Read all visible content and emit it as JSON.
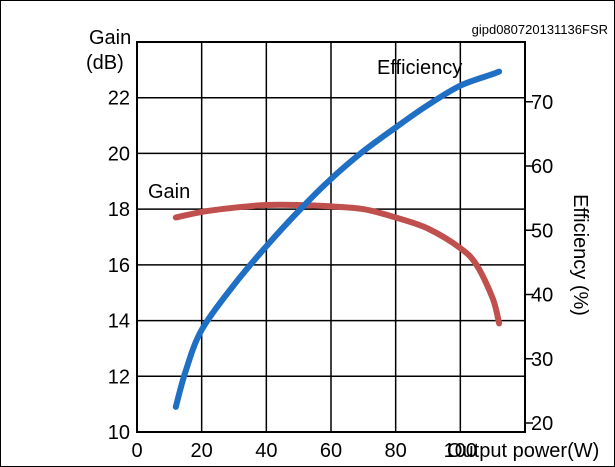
{
  "figure_id": "gipd080720131136FSR",
  "colors": {
    "gain": "#c0504d",
    "efficiency": "#1f6fc5",
    "grid": "#000000",
    "frame": "#000000"
  },
  "chart_data": {
    "type": "line",
    "title": "",
    "xlabel": "Output power(W)",
    "ylabel": "Gain",
    "ylabel_unit": "(dB)",
    "y2label": "Efficiency (%)",
    "xlim": [
      0,
      120
    ],
    "ylim": [
      10,
      24
    ],
    "y2lim": [
      18.6,
      79.3
    ],
    "grid": true,
    "x_ticks": [
      0,
      20,
      40,
      60,
      80,
      100
    ],
    "y_ticks": [
      10,
      12,
      14,
      16,
      18,
      20,
      22
    ],
    "y2_ticks": [
      20,
      30,
      40,
      50,
      60,
      70
    ],
    "series": [
      {
        "name": "Gain",
        "axis": "left",
        "color": "#c0504d",
        "x": [
          12,
          20,
          30,
          40,
          50,
          60,
          70,
          80,
          90,
          100,
          105,
          110,
          112
        ],
        "y": [
          17.7,
          17.9,
          18.05,
          18.15,
          18.15,
          18.1,
          18.0,
          17.7,
          17.3,
          16.6,
          16.0,
          14.8,
          13.9
        ]
      },
      {
        "name": "Efficiency",
        "axis": "right",
        "color": "#1f6fc5",
        "x": [
          12,
          15,
          20,
          30,
          40,
          50,
          60,
          70,
          80,
          90,
          100,
          110,
          112
        ],
        "y": [
          22.5,
          28.0,
          34.5,
          41.5,
          47.5,
          53.0,
          58.0,
          62.3,
          66.0,
          69.5,
          72.5,
          74.3,
          74.7
        ]
      }
    ]
  }
}
